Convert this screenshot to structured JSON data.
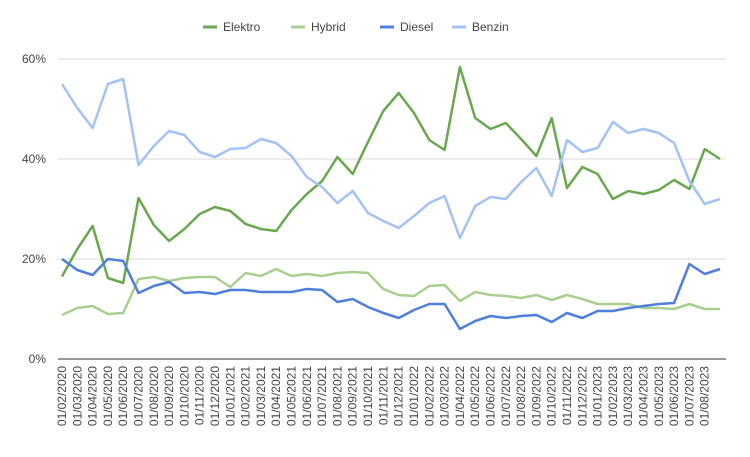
{
  "chart_data": {
    "type": "line",
    "categories": [
      "01/02/2020",
      "01/03/2020",
      "01/04/2020",
      "01/05/2020",
      "01/06/2020",
      "01/07/2020",
      "01/08/2020",
      "01/09/2020",
      "01/10/2020",
      "01/11/2020",
      "01/12/2020",
      "01/01/2021",
      "01/02/2021",
      "01/03/2021",
      "01/04/2021",
      "01/05/2021",
      "01/06/2021",
      "01/07/2021",
      "01/08/2021",
      "01/09/2021",
      "01/10/2021",
      "01/11/2021",
      "01/12/2021",
      "01/01/2022",
      "01/02/2022",
      "01/03/2022",
      "01/04/2022",
      "01/05/2022",
      "01/06/2022",
      "01/07/2022",
      "01/08/2022",
      "01/09/2022",
      "01/10/2022",
      "01/11/2022",
      "01/12/2022",
      "01/01/2023",
      "01/02/2023",
      "01/03/2023",
      "01/04/2023",
      "01/05/2023",
      "01/06/2023",
      "01/07/2023",
      "01/08/2023",
      null
    ],
    "series": [
      {
        "name": "Elektro",
        "color": "#6aa84f",
        "values": [
          16.5,
          22,
          26.6,
          16.2,
          15.2,
          32.2,
          26.8,
          23.6,
          26,
          29,
          30.4,
          29.6,
          27,
          26,
          25.6,
          29.8,
          33,
          35.6,
          40.4,
          37,
          43.4,
          49.6,
          53.2,
          49.2,
          43.8,
          41.8,
          58.4,
          48.2,
          46,
          47.2,
          44,
          40.6,
          48.2,
          34.2,
          38.4,
          37,
          32,
          33.6,
          33,
          33.8,
          35.8,
          34,
          42,
          40
        ]
      },
      {
        "name": "Hybrid",
        "color": "#a9cf8f",
        "values": [
          8.8,
          10.2,
          10.6,
          9,
          9.2,
          16,
          16.4,
          15.6,
          16.2,
          16.4,
          16.4,
          14.4,
          17.2,
          16.6,
          18,
          16.6,
          17,
          16.6,
          17.2,
          17.4,
          17.2,
          14,
          12.8,
          12.6,
          14.6,
          14.8,
          11.6,
          13.4,
          12.8,
          12.6,
          12.2,
          12.8,
          11.8,
          12.8,
          12,
          11,
          11,
          11,
          10.2,
          10.2,
          10,
          11,
          10,
          10
        ]
      },
      {
        "name": "Diesel",
        "color": "#4f7fdc",
        "values": [
          20,
          17.8,
          16.8,
          20,
          19.6,
          13.2,
          14.6,
          15.4,
          13.2,
          13.4,
          13,
          13.8,
          13.8,
          13.4,
          13.4,
          13.4,
          14,
          13.8,
          11.4,
          12,
          10.4,
          9.2,
          8.2,
          9.8,
          11,
          11,
          6,
          7.6,
          8.6,
          8.2,
          8.6,
          8.8,
          7.4,
          9.2,
          8.2,
          9.6,
          9.6,
          10.2,
          10.6,
          11,
          11.2,
          19,
          17,
          18
        ]
      },
      {
        "name": "Benzin",
        "color": "#a4c2f4",
        "values": [
          55,
          50.2,
          46.2,
          55,
          56,
          38.8,
          42.6,
          45.6,
          44.8,
          41.4,
          40.4,
          42,
          42.2,
          44,
          43.2,
          40.6,
          36.4,
          34.4,
          31.2,
          33.6,
          29.2,
          27.6,
          26.2,
          28.6,
          31.2,
          32.6,
          24.2,
          30.6,
          32.4,
          32,
          35.4,
          38.2,
          32.6,
          43.8,
          41.4,
          42.2,
          47.4,
          45.2,
          46,
          45.2,
          43.2,
          35.6,
          31,
          32
        ]
      }
    ],
    "ylim": [
      0,
      60
    ],
    "yticks": [
      {
        "value": 0,
        "label": "0%"
      },
      {
        "value": 20,
        "label": "20%"
      },
      {
        "value": 40,
        "label": "40%"
      },
      {
        "value": 60,
        "label": "60%"
      }
    ],
    "grid": true,
    "legend": "top"
  }
}
